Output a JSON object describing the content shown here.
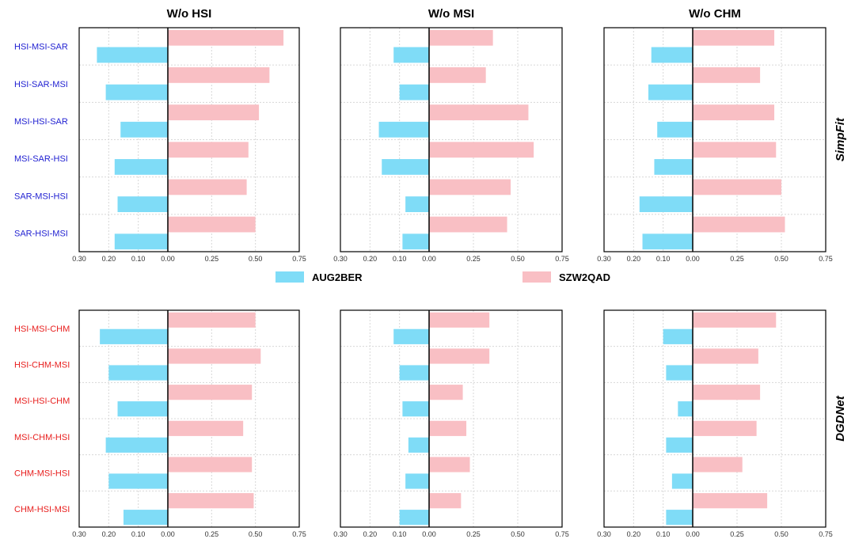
{
  "chart_data": {
    "type": "bar",
    "orientation": "horizontal-diverging",
    "column_titles": [
      "W/o HSI",
      "W/o MSI",
      "W/o CHM"
    ],
    "row_titles": [
      "SimpFit",
      "DGDNet"
    ],
    "legend": [
      {
        "name": "AUG2BER",
        "color": "#7fdcf7"
      },
      {
        "name": "SZW2QAD",
        "color": "#f9bfc4"
      }
    ],
    "x_tick_labels": [
      "0.30",
      "0.20",
      "0.10",
      "0.00",
      "0.25",
      "0.50",
      "0.75"
    ],
    "xlim_left": [
      0.3,
      0.0
    ],
    "xlim_right": [
      0.0,
      0.75
    ],
    "rows": [
      {
        "name": "SimpFit",
        "label_color": "#1f1fd1",
        "categories": [
          "HSI-MSI-SAR",
          "HSI-SAR-MSI",
          "MSI-HSI-SAR",
          "MSI-SAR-HSI",
          "SAR-MSI-HSI",
          "SAR-HSI-MSI"
        ],
        "panels": [
          {
            "title": "W/o HSI",
            "AUG2BER": [
              0.24,
              0.21,
              0.16,
              0.18,
              0.17,
              0.18
            ],
            "SZW2QAD": [
              0.66,
              0.58,
              0.52,
              0.46,
              0.45,
              0.5
            ]
          },
          {
            "title": "W/o MSI",
            "AUG2BER": [
              0.12,
              0.1,
              0.17,
              0.16,
              0.08,
              0.09
            ],
            "SZW2QAD": [
              0.36,
              0.32,
              0.56,
              0.59,
              0.46,
              0.44
            ]
          },
          {
            "title": "W/o CHM",
            "AUG2BER": [
              0.14,
              0.15,
              0.12,
              0.13,
              0.18,
              0.17
            ],
            "SZW2QAD": [
              0.46,
              0.38,
              0.46,
              0.47,
              0.5,
              0.52
            ]
          }
        ]
      },
      {
        "name": "DGDNet",
        "label_color": "#e8201f",
        "categories": [
          "HSI-MSI-CHM",
          "HSI-CHM-MSI",
          "MSI-HSI-CHM",
          "MSI-CHM-HSI",
          "CHM-MSI-HSI",
          "CHM-HSI-MSI"
        ],
        "panels": [
          {
            "title": "W/o HSI",
            "AUG2BER": [
              0.23,
              0.2,
              0.17,
              0.21,
              0.2,
              0.15
            ],
            "SZW2QAD": [
              0.5,
              0.53,
              0.48,
              0.43,
              0.48,
              0.49
            ]
          },
          {
            "title": "W/o MSI",
            "AUG2BER": [
              0.12,
              0.1,
              0.09,
              0.07,
              0.08,
              0.1
            ],
            "SZW2QAD": [
              0.34,
              0.34,
              0.19,
              0.21,
              0.23,
              0.18
            ]
          },
          {
            "title": "W/o CHM",
            "AUG2BER": [
              0.1,
              0.09,
              0.05,
              0.09,
              0.07,
              0.09
            ],
            "SZW2QAD": [
              0.47,
              0.37,
              0.38,
              0.36,
              0.28,
              0.42
            ]
          }
        ]
      }
    ]
  }
}
